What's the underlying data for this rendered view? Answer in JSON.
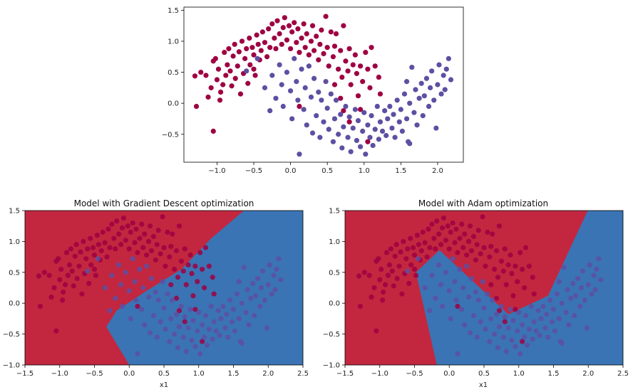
{
  "chart_data": [
    {
      "type": "scatter",
      "title": "",
      "xlabel": "",
      "ylabel": "",
      "xlim": [
        -1.45,
        2.35
      ],
      "ylim": [
        -0.95,
        1.55
      ],
      "xticks": [
        "−1.0",
        "−0.5",
        "0.0",
        "0.5",
        "1.0",
        "1.5",
        "2.0"
      ],
      "xtick_values": [
        -1.0,
        -0.5,
        0.0,
        0.5,
        1.0,
        1.5,
        2.0
      ],
      "yticks": [
        "1.5",
        "1.0",
        "0.5",
        "0.0",
        "−0.5"
      ],
      "ytick_values": [
        1.5,
        1.0,
        0.5,
        0.0,
        -0.5
      ],
      "grid": false,
      "colors": {
        "class_0": "#9e0142",
        "class_1": "#5e4fa2"
      }
    },
    {
      "type": "scatter",
      "title": "Model with Gradient Descent optimization",
      "xlabel": "x1",
      "ylabel": "",
      "xlim": [
        -1.5,
        2.5
      ],
      "ylim": [
        -1.0,
        1.5
      ],
      "xticks": [
        "−1.5",
        "−1.0",
        "−0.5",
        "0.0",
        "0.5",
        "1.0",
        "1.5",
        "2.0",
        "2.5"
      ],
      "xtick_values": [
        -1.5,
        -1.0,
        -0.5,
        0.0,
        0.5,
        1.0,
        1.5,
        2.0,
        2.5
      ],
      "yticks": [
        "1.5",
        "1.0",
        "0.5",
        "0.0",
        "−0.5",
        "−1.0"
      ],
      "ytick_values": [
        1.5,
        1.0,
        0.5,
        0.0,
        -0.5,
        -1.0
      ],
      "grid": false,
      "decision_boundary": [
        [
          -0.33,
          -0.38
        ],
        [
          -0.18,
          -0.12
        ],
        [
          0.22,
          0.18
        ],
        [
          0.75,
          0.55
        ],
        [
          1.18,
          1.05
        ],
        [
          1.67,
          1.52
        ]
      ],
      "colors": {
        "region_0": "#c2273f",
        "region_1": "#3a74b4"
      }
    },
    {
      "type": "scatter",
      "title": "Model with Adam optimization",
      "xlabel": "x1",
      "ylabel": "",
      "xlim": [
        -1.5,
        2.5
      ],
      "ylim": [
        -1.0,
        1.5
      ],
      "xticks": [
        "−1.5",
        "−1.0",
        "−0.5",
        "0.0",
        "0.5",
        "1.0",
        "1.5",
        "2.0",
        "2.5"
      ],
      "xtick_values": [
        -1.5,
        -1.0,
        -0.5,
        0.0,
        0.5,
        1.0,
        1.5,
        2.0,
        2.5
      ],
      "yticks": [
        "1.5",
        "1.0",
        "0.5",
        "0.0",
        "−0.5",
        "−1.0"
      ],
      "ytick_values": [
        1.5,
        1.0,
        0.5,
        0.0,
        -0.5,
        -1.0
      ],
      "grid": false,
      "decision_boundary": [
        [
          -0.18,
          -1.0
        ],
        [
          -0.48,
          0.5
        ],
        [
          -0.14,
          0.86
        ],
        [
          0.85,
          -0.18
        ],
        [
          1.42,
          0.12
        ],
        [
          2.0,
          1.52
        ]
      ],
      "colors": {
        "region_0": "#c2273f",
        "region_1": "#3a74b4"
      }
    }
  ],
  "points": {
    "class_0": [
      [
        -1.3,
        0.44
      ],
      [
        -1.28,
        -0.05
      ],
      [
        -1.22,
        0.5
      ],
      [
        -1.15,
        0.45
      ],
      [
        -1.12,
        0.1
      ],
      [
        -1.08,
        0.25
      ],
      [
        -1.05,
        0.68
      ],
      [
        -1.05,
        -0.45
      ],
      [
        -1.02,
        0.72
      ],
      [
        -1.0,
        0.38
      ],
      [
        -0.98,
        0.55
      ],
      [
        -0.96,
        0.05
      ],
      [
        -0.95,
        0.18
      ],
      [
        -0.92,
        0.3
      ],
      [
        -0.9,
        0.82
      ],
      [
        -0.88,
        0.45
      ],
      [
        -0.86,
        0.62
      ],
      [
        -0.84,
        0.88
      ],
      [
        -0.82,
        0.52
      ],
      [
        -0.8,
        0.28
      ],
      [
        -0.78,
        0.76
      ],
      [
        -0.76,
        0.95
      ],
      [
        -0.75,
        0.4
      ],
      [
        -0.72,
        0.6
      ],
      [
        -0.7,
        0.83
      ],
      [
        -0.68,
        0.15
      ],
      [
        -0.66,
        1.0
      ],
      [
        -0.64,
        0.48
      ],
      [
        -0.62,
        0.72
      ],
      [
        -0.6,
        0.88
      ],
      [
        -0.58,
        0.32
      ],
      [
        -0.56,
        1.05
      ],
      [
        -0.55,
        0.62
      ],
      [
        -0.52,
        0.9
      ],
      [
        -0.5,
        0.78
      ],
      [
        -0.48,
        0.45
      ],
      [
        -0.46,
        1.1
      ],
      [
        -0.44,
        0.95
      ],
      [
        -0.42,
        0.7
      ],
      [
        -0.4,
        0.85
      ],
      [
        -0.38,
        1.15
      ],
      [
        -0.35,
        0.98
      ],
      [
        -0.32,
        0.75
      ],
      [
        -0.3,
        1.2
      ],
      [
        -0.28,
        0.9
      ],
      [
        -0.25,
        1.28
      ],
      [
        -0.22,
        1.05
      ],
      [
        -0.2,
        0.88
      ],
      [
        -0.18,
        1.33
      ],
      [
        -0.15,
        1.12
      ],
      [
        -0.12,
        0.95
      ],
      [
        -0.1,
        1.22
      ],
      [
        -0.08,
        1.38
      ],
      [
        -0.05,
        1.02
      ],
      [
        -0.02,
        1.25
      ],
      [
        0.0,
        0.88
      ],
      [
        0.02,
        1.15
      ],
      [
        0.05,
        1.3
      ],
      [
        0.08,
        0.98
      ],
      [
        0.1,
        1.2
      ],
      [
        0.12,
        0.82
      ],
      [
        0.15,
        1.05
      ],
      [
        0.18,
        1.28
      ],
      [
        0.2,
        0.9
      ],
      [
        0.22,
        1.12
      ],
      [
        0.25,
        0.78
      ],
      [
        0.28,
        1.0
      ],
      [
        0.3,
        1.25
      ],
      [
        0.32,
        0.85
      ],
      [
        0.35,
        1.08
      ],
      [
        0.38,
        0.7
      ],
      [
        0.4,
        0.95
      ],
      [
        0.42,
        1.18
      ],
      [
        0.45,
        0.8
      ],
      [
        0.48,
        1.4
      ],
      [
        0.5,
        0.9
      ],
      [
        0.52,
        0.6
      ],
      [
        0.55,
        1.15
      ],
      [
        0.58,
        0.75
      ],
      [
        0.6,
        0.92
      ],
      [
        0.62,
        1.12
      ],
      [
        0.65,
        0.55
      ],
      [
        0.68,
        0.85
      ],
      [
        0.7,
        0.42
      ],
      [
        0.72,
        1.25
      ],
      [
        0.75,
        0.68
      ],
      [
        0.78,
        0.52
      ],
      [
        0.8,
        0.88
      ],
      [
        0.82,
        0.3
      ],
      [
        0.85,
        0.62
      ],
      [
        0.88,
        0.78
      ],
      [
        0.9,
        0.48
      ],
      [
        0.92,
        0.12
      ],
      [
        0.95,
        0.6
      ],
      [
        0.98,
        0.35
      ],
      [
        1.02,
        0.82
      ],
      [
        1.05,
        0.55
      ],
      [
        1.08,
        0.25
      ],
      [
        1.1,
        0.9
      ],
      [
        1.15,
        0.6
      ],
      [
        1.2,
        0.42
      ],
      [
        1.22,
        0.15
      ],
      [
        0.72,
        -0.12
      ],
      [
        0.8,
        -0.3
      ],
      [
        0.95,
        -0.1
      ],
      [
        1.05,
        -0.62
      ],
      [
        0.68,
        0.08
      ],
      [
        0.6,
        0.3
      ],
      [
        0.12,
        -0.05
      ],
      [
        -0.5,
        0.55
      ]
    ],
    "class_1": [
      [
        -0.6,
        0.52
      ],
      [
        -0.45,
        0.72
      ],
      [
        -0.35,
        0.25
      ],
      [
        -0.28,
        -0.12
      ],
      [
        -0.25,
        0.45
      ],
      [
        -0.2,
        0.08
      ],
      [
        -0.15,
        0.62
      ],
      [
        -0.12,
        0.3
      ],
      [
        -0.1,
        -0.05
      ],
      [
        -0.05,
        0.5
      ],
      [
        0.0,
        0.2
      ],
      [
        0.02,
        -0.25
      ],
      [
        0.05,
        0.72
      ],
      [
        0.08,
        0.35
      ],
      [
        0.1,
        0.05
      ],
      [
        0.12,
        -0.82
      ],
      [
        0.15,
        0.55
      ],
      [
        0.18,
        -0.1
      ],
      [
        0.2,
        0.25
      ],
      [
        0.22,
        -0.35
      ],
      [
        0.25,
        0.6
      ],
      [
        0.28,
        0.1
      ],
      [
        0.3,
        -0.48
      ],
      [
        0.32,
        0.4
      ],
      [
        0.35,
        -0.2
      ],
      [
        0.38,
        0.18
      ],
      [
        0.4,
        -0.55
      ],
      [
        0.42,
        0.05
      ],
      [
        0.45,
        -0.3
      ],
      [
        0.48,
        0.35
      ],
      [
        0.5,
        -0.08
      ],
      [
        0.52,
        -0.42
      ],
      [
        0.55,
        0.15
      ],
      [
        0.58,
        -0.62
      ],
      [
        0.6,
        -0.25
      ],
      [
        0.62,
        0.05
      ],
      [
        0.65,
        -0.5
      ],
      [
        0.68,
        -0.18
      ],
      [
        0.7,
        -0.72
      ],
      [
        0.72,
        -0.38
      ],
      [
        0.75,
        -0.05
      ],
      [
        0.78,
        -0.55
      ],
      [
        0.8,
        -0.22
      ],
      [
        0.82,
        -0.78
      ],
      [
        0.85,
        -0.4
      ],
      [
        0.88,
        -0.1
      ],
      [
        0.9,
        -0.6
      ],
      [
        0.92,
        -0.28
      ],
      [
        0.95,
        -0.7
      ],
      [
        0.98,
        -0.45
      ],
      [
        1.0,
        -0.15
      ],
      [
        1.02,
        -0.82
      ],
      [
        1.05,
        -0.35
      ],
      [
        1.08,
        -0.55
      ],
      [
        1.1,
        -0.2
      ],
      [
        1.12,
        -0.68
      ],
      [
        1.15,
        -0.42
      ],
      [
        1.18,
        -0.05
      ],
      [
        1.2,
        -0.58
      ],
      [
        1.22,
        -0.3
      ],
      [
        1.25,
        -0.45
      ],
      [
        1.28,
        -0.12
      ],
      [
        1.3,
        -0.52
      ],
      [
        1.32,
        -0.25
      ],
      [
        1.35,
        -0.05
      ],
      [
        1.38,
        -0.4
      ],
      [
        1.4,
        -0.18
      ],
      [
        1.42,
        -0.55
      ],
      [
        1.45,
        0.05
      ],
      [
        1.48,
        -0.3
      ],
      [
        1.5,
        -0.1
      ],
      [
        1.52,
        -0.45
      ],
      [
        1.55,
        0.15
      ],
      [
        1.58,
        -0.25
      ],
      [
        1.6,
        -0.62
      ],
      [
        1.62,
        0.0
      ],
      [
        1.65,
        0.58
      ],
      [
        1.68,
        -0.15
      ],
      [
        1.7,
        0.22
      ],
      [
        1.72,
        -0.35
      ],
      [
        1.75,
        0.08
      ],
      [
        1.78,
        0.32
      ],
      [
        1.8,
        -0.2
      ],
      [
        1.82,
        0.12
      ],
      [
        1.85,
        0.4
      ],
      [
        1.88,
        -0.05
      ],
      [
        1.9,
        0.25
      ],
      [
        1.92,
        0.52
      ],
      [
        1.95,
        0.05
      ],
      [
        1.98,
        -0.4
      ],
      [
        2.0,
        0.3
      ],
      [
        2.02,
        0.62
      ],
      [
        2.05,
        0.15
      ],
      [
        2.08,
        0.45
      ],
      [
        2.1,
        0.22
      ],
      [
        2.12,
        0.55
      ],
      [
        2.15,
        0.72
      ],
      [
        2.18,
        0.38
      ],
      [
        1.62,
        -0.65
      ],
      [
        1.58,
        0.35
      ]
    ]
  }
}
